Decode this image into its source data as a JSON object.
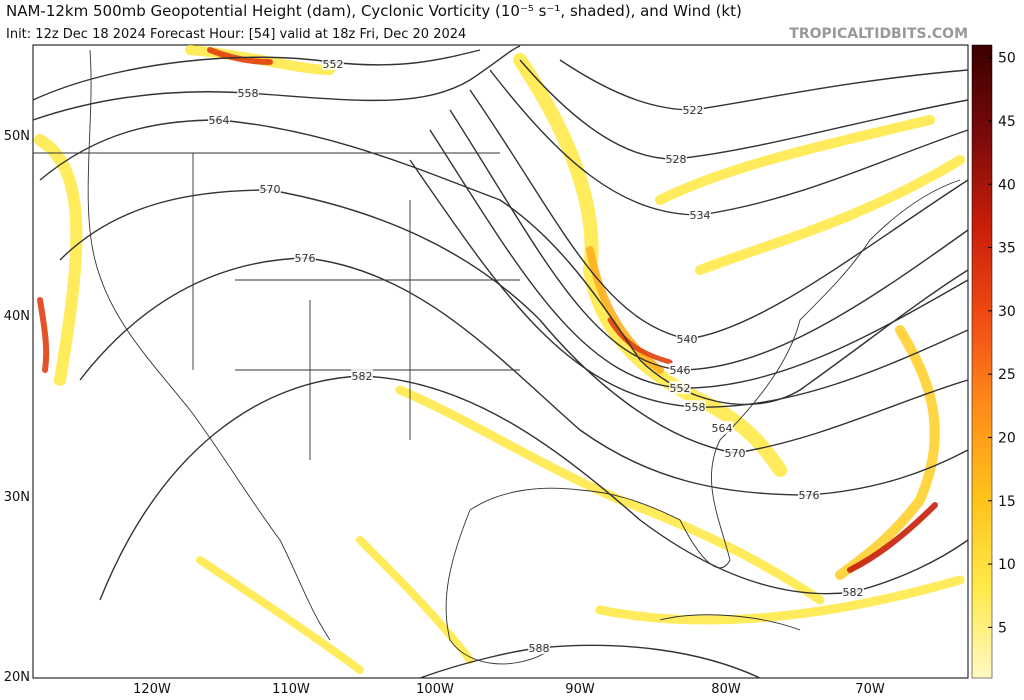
{
  "header": {
    "title": "NAM-12km 500mb Geopotential Height (dam), Cyclonic Vorticity (10⁻⁵ s⁻¹, shaded), and Wind (kt)",
    "subtitle": "Init: 12z Dec 18 2024   Forecast Hour: [54]   valid at 18z Fri, Dec 20 2024",
    "credit": "TROPICALTIDBITS.COM"
  },
  "map": {
    "lat_labels": [
      "50N",
      "40N",
      "30N",
      "20N"
    ],
    "lon_labels": [
      "120W",
      "110W",
      "100W",
      "90W",
      "80W",
      "70W"
    ],
    "contour_labels": [
      552,
      558,
      564,
      570,
      576,
      582,
      588,
      522,
      528,
      534,
      540,
      546,
      552,
      558,
      564,
      570,
      576,
      582
    ]
  },
  "colorbar": {
    "range": [
      1,
      51
    ],
    "ticks": [
      5,
      10,
      15,
      20,
      25,
      30,
      35,
      40,
      45,
      50
    ],
    "colors": [
      "#fff9c4",
      "#ffe94a",
      "#ffc21a",
      "#ff8c1a",
      "#f04a14",
      "#c81e0a",
      "#7a0a0a",
      "#3a0000"
    ]
  }
}
